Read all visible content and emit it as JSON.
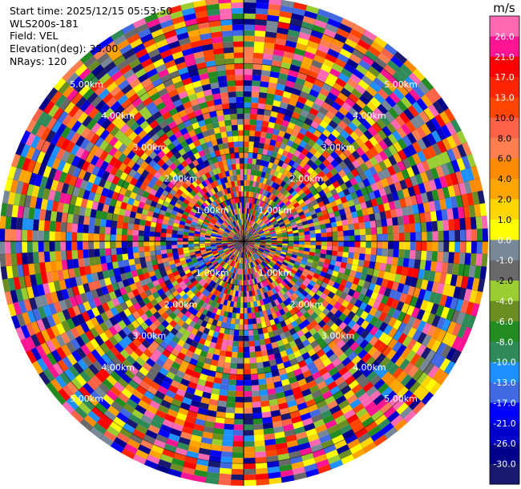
{
  "header": {
    "start_time": "Start time: 2025/12/15 05:53:50",
    "instrument": "WLS200s-181",
    "field": "Field: VEL",
    "elevation": "Elevation(deg): 35.00",
    "nrays": "NRays: 120"
  },
  "chart_data": {
    "type": "heatmap",
    "projection": "polar-ppi",
    "field": "VEL",
    "nrays": 120,
    "range_rings_km": [
      1.0,
      2.0,
      3.0,
      4.0,
      5.0
    ],
    "range_ring_labels": [
      "1.00km",
      "2.00km",
      "3.00km",
      "4.00km",
      "5.00km"
    ],
    "max_range_km": 5.5,
    "colorbar": {
      "unit": "m/s",
      "ticks": [
        "26.0",
        "21.0",
        "17.0",
        "13.0",
        "10.0",
        "8.0",
        "6.0",
        "4.0",
        "2.0",
        "1.0",
        "0.0",
        "-1.0",
        "-2.0",
        "-4.0",
        "-6.0",
        "-8.0",
        "-10.0",
        "-13.0",
        "-17.0",
        "-21.0",
        "-26.0",
        "-30.0"
      ],
      "colors": [
        "#ff69b4",
        "#ff1493",
        "#ff0000",
        "#ff2400",
        "#ff4500",
        "#ff6347",
        "#ff7f50",
        "#ff8c00",
        "#ffa500",
        "#ffd700",
        "#ffff00",
        "#778899",
        "#696969",
        "#9acd32",
        "#6b8e23",
        "#228b22",
        "#2e8b57",
        "#1e90ff",
        "#4169e1",
        "#0000ff",
        "#0000cd",
        "#00008b",
        "#191970"
      ]
    }
  }
}
